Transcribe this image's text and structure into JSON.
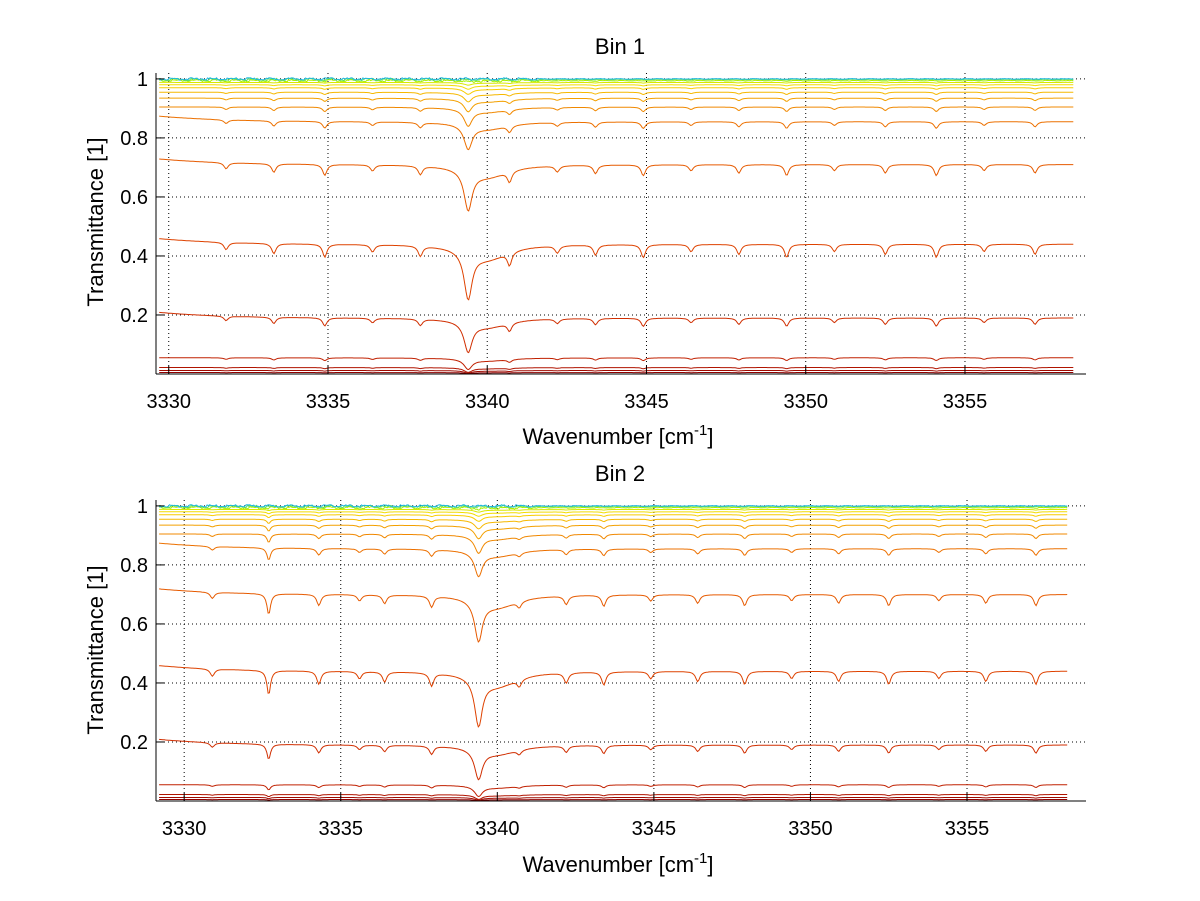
{
  "chart_data": [
    {
      "type": "line",
      "title": "Bin 1",
      "xlabel_base": "Wavenumber [cm",
      "xlabel_sup": "-1",
      "xlabel_end": "]",
      "ylabel": "Transmittance [1]",
      "xlim": [
        3329.6,
        3358.8
      ],
      "ylim": [
        0.0,
        1.02
      ],
      "xticks": [
        3330,
        3335,
        3340,
        3345,
        3350,
        3355
      ],
      "yticks": [
        0.2,
        0.4,
        0.6,
        0.8,
        1
      ],
      "ytick_labels": [
        "0.2",
        "0.4",
        "0.6",
        "0.8",
        "1"
      ],
      "grid": true,
      "baselines": [
        0.0,
        0.005,
        0.012,
        0.022,
        0.055,
        0.19,
        0.44,
        0.71,
        0.855,
        0.905,
        0.935,
        0.955,
        0.97,
        0.98,
        0.988,
        0.994,
        0.998,
        1.0
      ],
      "colors": [
        "#7f0000",
        "#8f0000",
        "#9f0a00",
        "#b01400",
        "#c02000",
        "#d02e00",
        "#de4200",
        "#e65a00",
        "#ec7000",
        "#f08800",
        "#f3a000",
        "#f6b800",
        "#f8cc00",
        "#f2dc00",
        "#d8e800",
        "#a8f000",
        "#60e060",
        "#20b8e0"
      ],
      "strong_line": {
        "x": 3339.4
      },
      "weak_lines": [
        3331.8,
        3333.3,
        3334.9,
        3336.4,
        3337.9,
        3340.7,
        3342.2,
        3343.4,
        3344.9,
        3346.4,
        3347.9,
        3349.4,
        3350.9,
        3352.5,
        3354.1,
        3355.6,
        3357.2
      ],
      "extra_dip": null
    },
    {
      "type": "line",
      "title": "Bin 2",
      "xlabel_base": "Wavenumber [cm",
      "xlabel_sup": "-1",
      "xlabel_end": "]",
      "ylabel": "Transmittance [1]",
      "xlim": [
        3329.1,
        3358.8
      ],
      "ylim": [
        0.0,
        1.02
      ],
      "xticks": [
        3330,
        3335,
        3340,
        3345,
        3350,
        3355
      ],
      "yticks": [
        0.2,
        0.4,
        0.6,
        0.8,
        1
      ],
      "ytick_labels": [
        "0.2",
        "0.4",
        "0.6",
        "0.8",
        "1"
      ],
      "grid": true,
      "baselines": [
        0.0,
        0.005,
        0.012,
        0.022,
        0.055,
        0.19,
        0.44,
        0.7,
        0.855,
        0.905,
        0.935,
        0.955,
        0.97,
        0.98,
        0.988,
        0.994,
        0.998,
        1.0
      ],
      "colors": [
        "#7f0000",
        "#8f0000",
        "#9f0a00",
        "#b01400",
        "#c02000",
        "#d02e00",
        "#de4200",
        "#e65a00",
        "#ec7000",
        "#f08800",
        "#f3a000",
        "#f6b800",
        "#f8cc00",
        "#f2dc00",
        "#d8e800",
        "#a8f000",
        "#60e060",
        "#20b8e0"
      ],
      "strong_line": {
        "x": 3339.4
      },
      "weak_lines": [
        3330.9,
        3332.7,
        3334.3,
        3335.6,
        3336.4,
        3337.9,
        3340.7,
        3342.2,
        3343.4,
        3344.9,
        3346.4,
        3347.9,
        3349.4,
        3350.9,
        3352.5,
        3354.1,
        3355.6,
        3357.2
      ],
      "extra_dip": {
        "x": 3332.7
      }
    }
  ]
}
